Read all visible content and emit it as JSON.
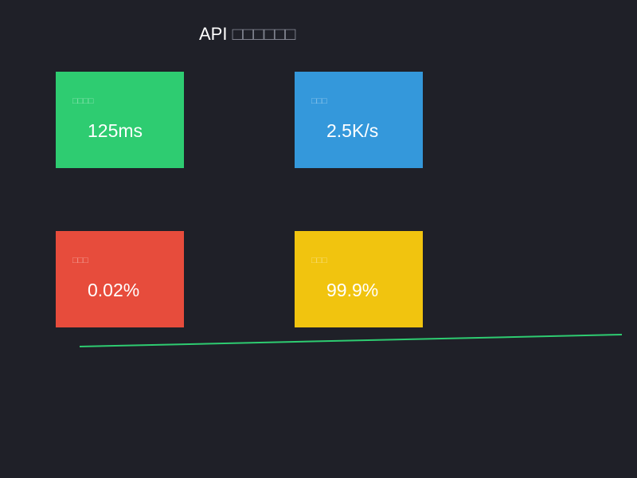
{
  "header": {
    "title_prefix": "API",
    "title_rest": "□□□□□□"
  },
  "metrics": {
    "latency": {
      "label": "□□□□",
      "value": "125ms",
      "color": "#2ecc71"
    },
    "throughput": {
      "label": "□□□",
      "value": "2.5K/s",
      "color": "#3498db"
    },
    "errors": {
      "label": "□□□",
      "value": "0.02%",
      "color": "#e74c3c"
    },
    "uptime": {
      "label": "□□□",
      "value": "99.9%",
      "color": "#f1c40f"
    }
  },
  "colors": {
    "background": "#1f2028",
    "trend_line": "#2ecc71"
  }
}
